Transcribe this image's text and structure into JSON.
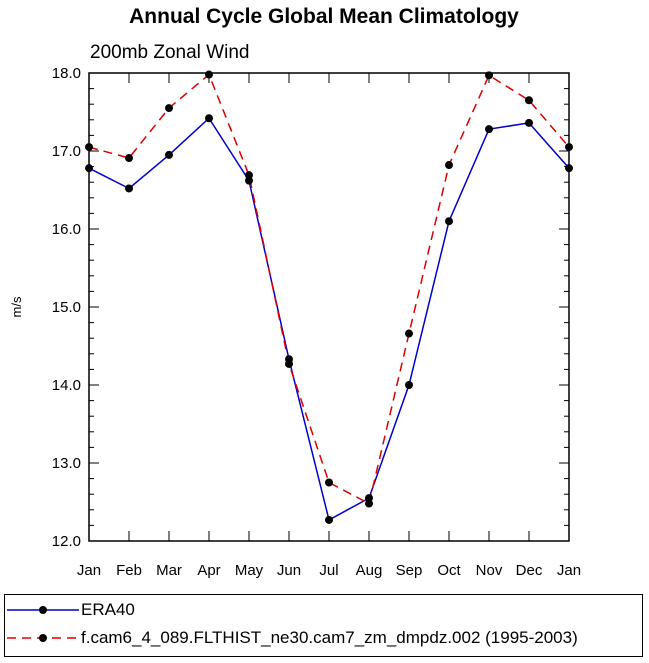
{
  "chart_data": {
    "type": "line",
    "title": "Annual Cycle Global Mean Climatology",
    "subtitle": "200mb Zonal Wind",
    "xlabel": "",
    "ylabel": "m/s",
    "categories": [
      "Jan",
      "Feb",
      "Mar",
      "Apr",
      "May",
      "Jun",
      "Jul",
      "Aug",
      "Sep",
      "Oct",
      "Nov",
      "Dec",
      "Jan"
    ],
    "ylim": [
      12.0,
      18.0
    ],
    "yticks": [
      "12.0",
      "13.0",
      "14.0",
      "15.0",
      "16.0",
      "17.0",
      "18.0"
    ],
    "grid": false,
    "legend_position": "bottom",
    "series": [
      {
        "name": "ERA40",
        "color": "#0000cc",
        "dash": "solid",
        "values": [
          16.78,
          16.52,
          16.95,
          17.42,
          16.62,
          14.33,
          12.27,
          12.55,
          14.0,
          16.1,
          17.28,
          17.36,
          16.78
        ]
      },
      {
        "name": "f.cam6_4_089.FLTHIST_ne30.cam7_zm_dmpdz.002 (1995-2003)",
        "color": "#dd0000",
        "dash": "dashed",
        "values": [
          17.05,
          16.91,
          17.55,
          17.98,
          16.69,
          14.27,
          12.75,
          12.48,
          14.66,
          16.82,
          17.97,
          17.65,
          17.05
        ]
      }
    ]
  }
}
